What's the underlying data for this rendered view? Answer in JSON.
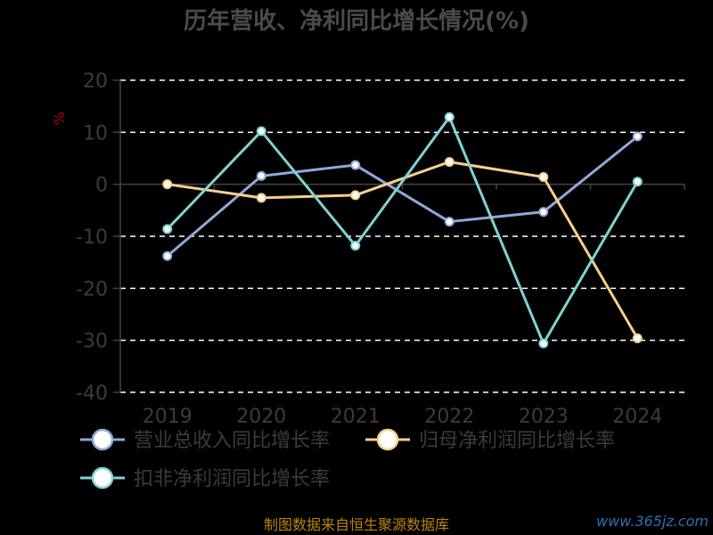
{
  "chart_data": {
    "type": "line",
    "title": "历年营收、净利同比增长情况(%)",
    "ylabel": "%",
    "ylim": [
      -40,
      20
    ],
    "yticks": [
      20,
      10,
      0,
      -10,
      -20,
      -30,
      -40
    ],
    "categories": [
      "2019",
      "2020",
      "2021",
      "2022",
      "2023",
      "2024"
    ],
    "grid": true,
    "legend_position": "bottom",
    "series": [
      {
        "name": "营业总收入同比增长率",
        "color": "#8fa8d8",
        "values": [
          -13.8,
          1.6,
          3.7,
          -7.2,
          -5.3,
          9.2
        ]
      },
      {
        "name": "归母净利润同比增长率",
        "color": "#f5d08a",
        "values": [
          0.0,
          -2.6,
          -2.1,
          4.3,
          1.4,
          -29.6
        ]
      },
      {
        "name": "扣非净利润同比增长率",
        "color": "#7fd3d0",
        "values": [
          -8.6,
          10.2,
          -11.8,
          12.9,
          -30.6,
          0.5
        ]
      }
    ]
  },
  "footer": {
    "source": "制图数据来自恒生聚源数据库",
    "watermark": "www.365jz.com"
  }
}
